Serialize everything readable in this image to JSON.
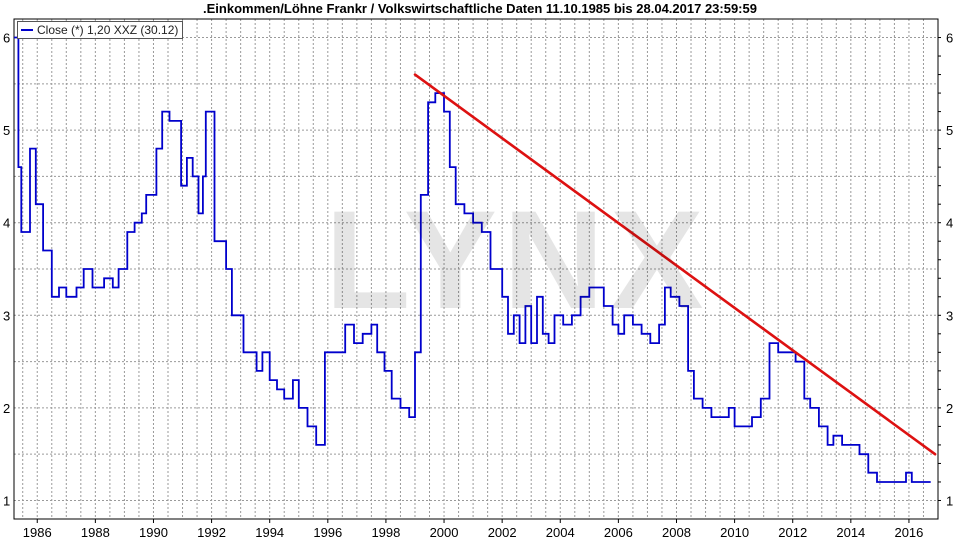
{
  "title": ".Einkommen/Löhne Frankr / Volkswirtschaftliche Daten 11.10.1985 bis 28.04.2017 23:59:59",
  "legend": {
    "label": "Close (*) 1,20 XXZ (30.12)"
  },
  "watermark": "LYNX",
  "colors": {
    "series": "#0000cc",
    "trend": "#dd1111",
    "grid": "#9a9a9a",
    "frame": "#000000"
  },
  "chart_data": {
    "type": "line",
    "title": ".Einkommen/Löhne Frankr / Volkswirtschaftliche Daten 11.10.1985 bis 28.04.2017 23:59:59",
    "xlim": [
      1985.2,
      2017.0
    ],
    "ylim": [
      0.8,
      6.2
    ],
    "x_ticks": [
      1986,
      1988,
      1990,
      1992,
      1994,
      1996,
      1998,
      2000,
      2002,
      2004,
      2006,
      2008,
      2010,
      2012,
      2014,
      2016
    ],
    "y_ticks": [
      1,
      2,
      3,
      4,
      5,
      6
    ],
    "y_axis_both_sides": true,
    "grid": true,
    "legend_position": "top-left",
    "series": [
      {
        "name": "Close (*) 1,20 XXZ (30.12)",
        "step": true,
        "x": [
          1985.2,
          1985.35,
          1985.45,
          1985.55,
          1985.75,
          1985.95,
          1986.2,
          1986.5,
          1986.75,
          1987.0,
          1987.35,
          1987.6,
          1987.9,
          1988.3,
          1988.6,
          1988.8,
          1989.1,
          1989.35,
          1989.6,
          1989.75,
          1990.1,
          1990.3,
          1990.55,
          1990.75,
          1990.95,
          1991.15,
          1991.35,
          1991.55,
          1991.7,
          1991.8,
          1992.1,
          1992.3,
          1992.5,
          1992.7,
          1993.1,
          1993.35,
          1993.55,
          1993.75,
          1994.0,
          1994.25,
          1994.5,
          1994.8,
          1995.0,
          1995.3,
          1995.6,
          1995.9,
          1996.2,
          1996.35,
          1996.6,
          1996.9,
          1997.2,
          1997.5,
          1997.7,
          1997.95,
          1998.2,
          1998.5,
          1998.8,
          1999.0,
          1999.2,
          1999.45,
          1999.7,
          2000.0,
          2000.2,
          2000.4,
          2000.7,
          2001.0,
          2001.3,
          2001.6,
          2002.0,
          2002.2,
          2002.4,
          2002.6,
          2002.8,
          2003.0,
          2003.2,
          2003.4,
          2003.6,
          2003.8,
          2004.1,
          2004.4,
          2004.7,
          2005.0,
          2005.2,
          2005.5,
          2005.8,
          2006.0,
          2006.2,
          2006.5,
          2006.8,
          2007.1,
          2007.4,
          2007.6,
          2007.8,
          2008.1,
          2008.4,
          2008.6,
          2008.9,
          2009.2,
          2009.5,
          2009.8,
          2010.0,
          2010.3,
          2010.6,
          2010.9,
          2011.2,
          2011.5,
          2011.8,
          2012.1,
          2012.4,
          2012.6,
          2012.9,
          2013.2,
          2013.4,
          2013.7,
          2014.0,
          2014.3,
          2014.6,
          2014.9,
          2015.3,
          2015.7,
          2015.9,
          2016.1,
          2016.3,
          2016.5
        ],
        "y": [
          6.0,
          4.6,
          3.9,
          3.9,
          4.8,
          4.2,
          3.7,
          3.2,
          3.3,
          3.2,
          3.3,
          3.5,
          3.3,
          3.4,
          3.3,
          3.5,
          3.9,
          4.0,
          4.1,
          4.3,
          4.8,
          5.2,
          5.1,
          5.1,
          4.4,
          4.7,
          4.5,
          4.1,
          4.5,
          5.2,
          3.8,
          3.8,
          3.5,
          3.0,
          2.6,
          2.6,
          2.4,
          2.6,
          2.3,
          2.2,
          2.1,
          2.3,
          2.0,
          1.8,
          1.6,
          2.6,
          2.6,
          2.6,
          2.9,
          2.7,
          2.8,
          2.9,
          2.6,
          2.4,
          2.1,
          2.0,
          1.9,
          2.6,
          4.3,
          5.3,
          5.4,
          5.2,
          4.6,
          4.2,
          4.1,
          4.0,
          3.9,
          3.5,
          3.2,
          2.8,
          3.0,
          2.7,
          3.1,
          2.7,
          3.2,
          2.8,
          2.7,
          3.0,
          2.9,
          3.0,
          3.2,
          3.3,
          3.3,
          3.1,
          2.9,
          2.8,
          3.0,
          2.9,
          2.8,
          2.7,
          2.9,
          3.3,
          3.2,
          3.1,
          2.4,
          2.1,
          2.0,
          1.9,
          1.9,
          2.0,
          1.8,
          1.8,
          1.9,
          2.1,
          2.7,
          2.6,
          2.6,
          2.5,
          2.1,
          2.0,
          1.8,
          1.6,
          1.7,
          1.6,
          1.6,
          1.5,
          1.3,
          1.2,
          1.2,
          1.2,
          1.3,
          1.2,
          1.2,
          1.2
        ]
      },
      {
        "name": "",
        "type": "trendline",
        "x": [
          1999.0,
          2016.9
        ],
        "y": [
          5.6,
          1.5
        ]
      }
    ]
  }
}
